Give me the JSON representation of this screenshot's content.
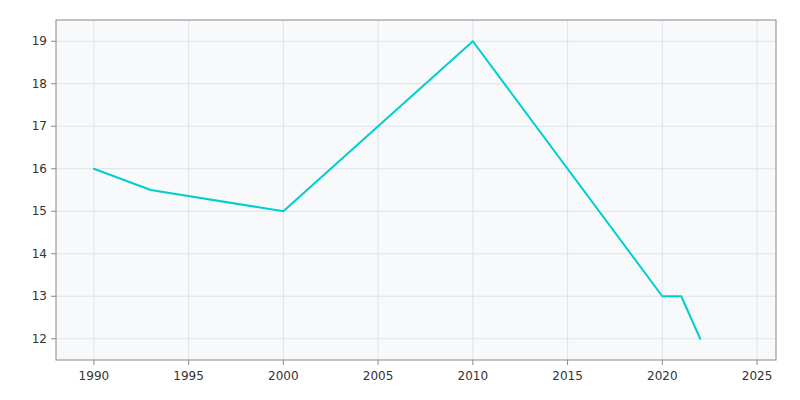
{
  "chart_data": {
    "type": "line",
    "x": [
      1990,
      1993,
      2000,
      2010,
      2020,
      2021,
      2022
    ],
    "values": [
      16,
      15.5,
      15,
      19,
      13,
      13,
      12
    ],
    "color": "#00CED1",
    "xlim": [
      1988,
      2026
    ],
    "ylim": [
      11.5,
      19.5
    ],
    "xticks": [
      1990,
      1995,
      2000,
      2005,
      2010,
      2015,
      2020,
      2025
    ],
    "yticks": [
      12,
      13,
      14,
      15,
      16,
      17,
      18,
      19
    ],
    "grid": true
  }
}
